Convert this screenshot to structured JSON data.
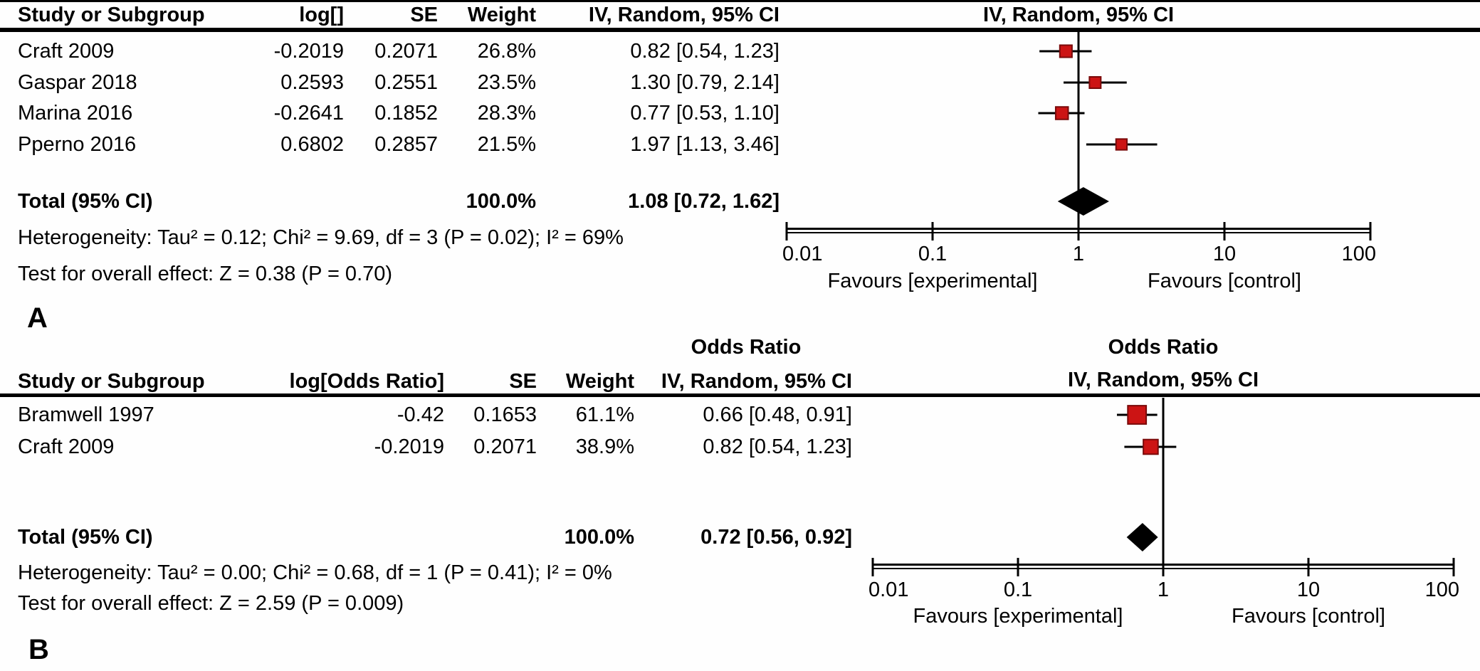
{
  "colors": {
    "marker_fill": "#CC1414",
    "marker_border": "#7A0A0A",
    "diamond_fill": "#000000",
    "line": "#000000",
    "text": "#000000",
    "background": "#FEFEFE"
  },
  "chart_data": [
    {
      "type": "forest",
      "panel_label": "A",
      "columns": [
        "Study or Subgroup",
        "log[]",
        "SE",
        "Weight",
        "IV, Random, 95% CI"
      ],
      "plot_column_header": "IV, Random, 95% CI",
      "studies": [
        {
          "name": "Craft 2009",
          "log_display": "-0.2019",
          "se_display": "0.2071",
          "weight": "26.8%",
          "weight_value": 26.8,
          "estimate": 0.82,
          "ci_low": 0.54,
          "ci_high": 1.23,
          "ci_text": "0.82 [0.54, 1.23]"
        },
        {
          "name": "Gaspar 2018",
          "log_display": "0.2593",
          "se_display": "0.2551",
          "weight": "23.5%",
          "weight_value": 23.5,
          "estimate": 1.3,
          "ci_low": 0.79,
          "ci_high": 2.14,
          "ci_text": "1.30 [0.79, 2.14]"
        },
        {
          "name": "Marina 2016",
          "log_display": "-0.2641",
          "se_display": "0.1852",
          "weight": "28.3%",
          "weight_value": 28.3,
          "estimate": 0.77,
          "ci_low": 0.53,
          "ci_high": 1.1,
          "ci_text": "0.77 [0.53, 1.10]"
        },
        {
          "name": "Pperno 2016",
          "log_display": "0.6802",
          "se_display": "0.2857",
          "weight": "21.5%",
          "weight_value": 21.5,
          "estimate": 1.97,
          "ci_low": 1.13,
          "ci_high": 3.46,
          "ci_text": "1.97 [1.13, 3.46]"
        }
      ],
      "total": {
        "label": "Total (95% CI)",
        "weight": "100.0%",
        "estimate": 1.08,
        "ci_low": 0.72,
        "ci_high": 1.62,
        "ci_text": "1.08 [0.72, 1.62]"
      },
      "heterogeneity_text": "Heterogeneity: Tau² = 0.12; Chi² = 9.69, df = 3 (P = 0.02); I² = 69%",
      "overall_effect_text": "Test for overall effect: Z = 0.38 (P = 0.70)",
      "x_scale": "log",
      "x_ticks": [
        0.01,
        0.1,
        1,
        10,
        100
      ],
      "x_tick_labels": [
        "0.01",
        "0.1",
        "1",
        "10",
        "100"
      ],
      "favours_left": "Favours [experimental]",
      "favours_right": "Favours [control]"
    },
    {
      "type": "forest",
      "panel_label": "B",
      "measure_header": "Odds Ratio",
      "columns": [
        "Study or Subgroup",
        "log[Odds Ratio]",
        "SE",
        "Weight",
        "IV, Random, 95% CI"
      ],
      "plot_column_header_top": "Odds Ratio",
      "plot_column_header": "IV, Random, 95% CI",
      "studies": [
        {
          "name": "Bramwell 1997",
          "log_display": "-0.42",
          "se_display": "0.1653",
          "weight": "61.1%",
          "weight_value": 61.1,
          "estimate": 0.66,
          "ci_low": 0.48,
          "ci_high": 0.91,
          "ci_text": "0.66 [0.48, 0.91]"
        },
        {
          "name": "Craft 2009",
          "log_display": "-0.2019",
          "se_display": "0.2071",
          "weight": "38.9%",
          "weight_value": 38.9,
          "estimate": 0.82,
          "ci_low": 0.54,
          "ci_high": 1.23,
          "ci_text": "0.82 [0.54, 1.23]"
        }
      ],
      "total": {
        "label": "Total (95% CI)",
        "weight": "100.0%",
        "estimate": 0.72,
        "ci_low": 0.56,
        "ci_high": 0.92,
        "ci_text": "0.72 [0.56, 0.92]"
      },
      "heterogeneity_text": "Heterogeneity: Tau² = 0.00; Chi² = 0.68, df = 1 (P = 0.41); I² = 0%",
      "overall_effect_text": "Test for overall effect: Z = 2.59 (P = 0.009)",
      "x_scale": "log",
      "x_ticks": [
        0.01,
        0.1,
        1,
        10,
        100
      ],
      "x_tick_labels": [
        "0.01",
        "0.1",
        "1",
        "10",
        "100"
      ],
      "favours_left": "Favours [experimental]",
      "favours_right": "Favours [control]"
    }
  ]
}
